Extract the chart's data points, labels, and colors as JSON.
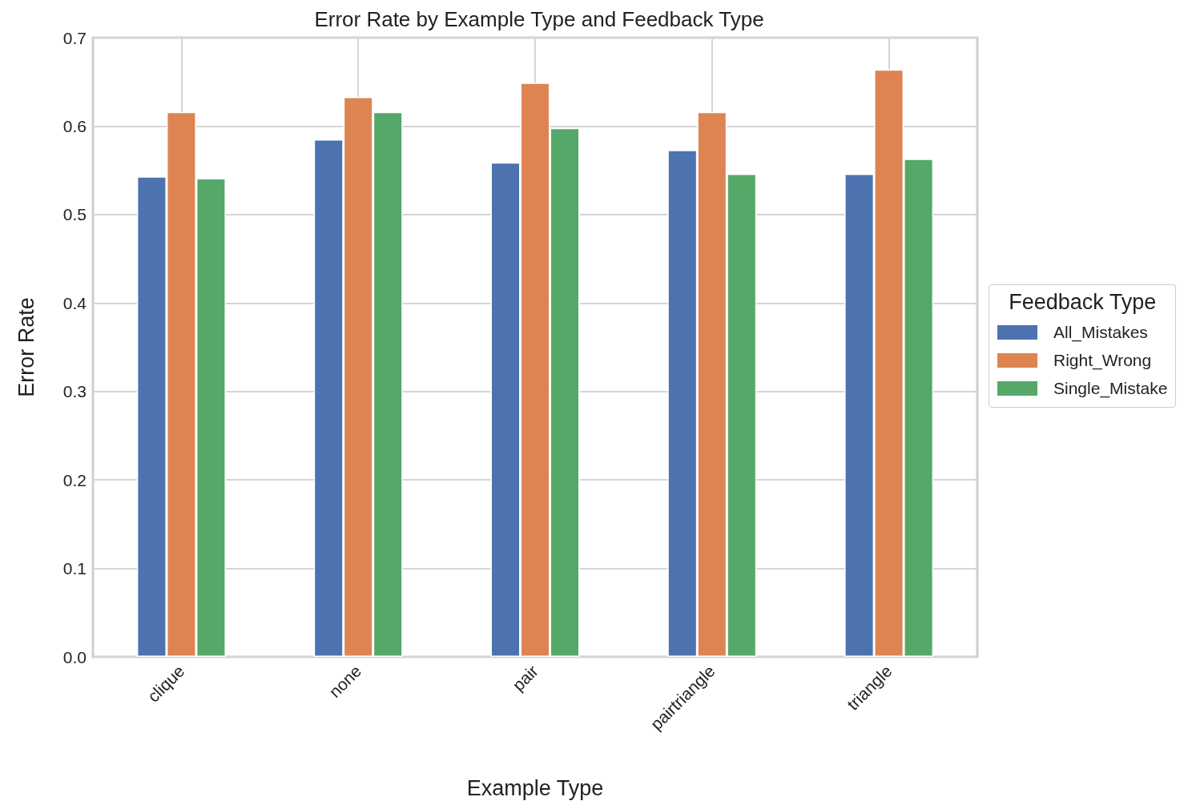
{
  "chart_data": {
    "type": "bar",
    "title": "Error Rate by Example Type and Feedback Type",
    "xlabel": "Example Type",
    "ylabel": "Error Rate",
    "legend_title": "Feedback Type",
    "categories": [
      "clique",
      "none",
      "pair",
      "pairtriangle",
      "triangle"
    ],
    "series": [
      {
        "name": "All_Mistakes",
        "color": "#4c72b0",
        "values": [
          0.543,
          0.585,
          0.559,
          0.573,
          0.546
        ]
      },
      {
        "name": "Right_Wrong",
        "color": "#dd8452",
        "values": [
          0.616,
          0.633,
          0.649,
          0.616,
          0.664
        ]
      },
      {
        "name": "Single_Mistake",
        "color": "#55a868",
        "values": [
          0.541,
          0.616,
          0.598,
          0.546,
          0.563
        ]
      }
    ],
    "ylim": [
      0,
      0.7
    ],
    "yticks": [
      {
        "value": 0,
        "label": "0.0"
      },
      0.1,
      0.2,
      0.3,
      0.4,
      0.5,
      0.6,
      0.7
    ],
    "grid": true,
    "legend": "right"
  }
}
